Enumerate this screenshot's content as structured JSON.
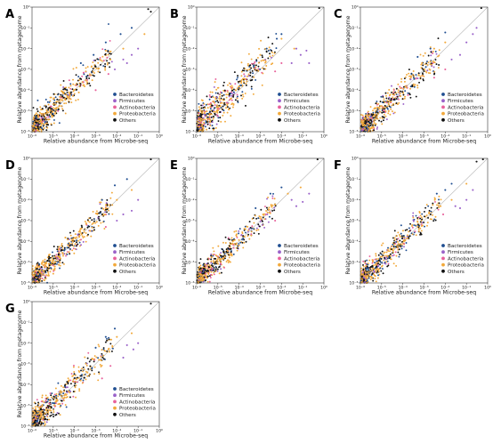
{
  "figure": {
    "colors": {
      "Bacteroidetes": "#1f4e91",
      "Firmicutes": "#9a62c9",
      "Actinobacteria": "#e8619b",
      "Proteobacteria": "#f2a93b",
      "Others": "#111111",
      "diagonal": "#b8b8b8"
    }
  },
  "chart_data": [
    {
      "type": "scatter",
      "panel": "A",
      "xlabel": "Relative abundance from Microbe-seq",
      "ylabel": "Relative abundance from metagenome",
      "xscale": "log",
      "yscale": "log",
      "xlim": [
        1e-06,
        1
      ],
      "ylim": [
        1e-06,
        1
      ],
      "x_ticks": [
        "10⁻⁶",
        "10⁻⁵",
        "10⁻⁴",
        "10⁻³",
        "10⁻²",
        "10⁻¹",
        "10⁰"
      ],
      "y_ticks": [
        "10⁻⁶",
        "10⁻⁵",
        "10⁻⁴",
        "10⁻³",
        "10⁻²",
        "10⁻¹",
        "10⁰"
      ],
      "reference_line": "y = x",
      "legend": [
        "Bacteroidetes",
        "Firmicutes",
        "Actinobacteria",
        "Proteobacteria",
        "Others"
      ],
      "legend_position": "lower-right",
      "seed": 11,
      "spread": 0.32,
      "offset": 0.1,
      "series": [
        {
          "name": "Bacteroidetes",
          "values": [
            [
              0.003,
              0.02
            ],
            [
              0.0008,
              0.005
            ],
            [
              0.05,
              0.1
            ],
            [
              0.015,
              0.05
            ],
            [
              0.0002,
              0.002
            ]
          ]
        },
        {
          "name": "Firmicutes",
          "values": [
            [
              0.05,
              0.005
            ],
            [
              0.02,
              0.003
            ],
            [
              0.1,
              0.01
            ],
            [
              0.03,
              0.002
            ],
            [
              0.008,
              0.001
            ]
          ]
        },
        {
          "name": "Actinobacteria",
          "values": [
            [
              0.004,
              0.0006
            ],
            [
              0.001,
              0.0001
            ]
          ]
        },
        {
          "name": "Proteobacteria",
          "values": [
            [
              0.02,
              0.01
            ],
            [
              0.005,
              0.003
            ],
            [
              0.2,
              0.05
            ],
            [
              0.003,
              0.008
            ]
          ]
        },
        {
          "name": "Others",
          "values": [
            [
              0.3,
              0.8
            ],
            [
              0.4,
              0.6
            ]
          ]
        }
      ]
    },
    {
      "type": "scatter",
      "panel": "B",
      "xlabel": "Relative abundance from Microbe-seq",
      "ylabel": "Relative abundance from metagenome",
      "xscale": "log",
      "yscale": "log",
      "xlim": [
        1e-06,
        1
      ],
      "ylim": [
        1e-06,
        1
      ],
      "x_ticks": [
        "10⁻⁶",
        "10⁻⁵",
        "10⁻⁴",
        "10⁻³",
        "10⁻²",
        "10⁻¹",
        "10⁰"
      ],
      "y_ticks": [
        "10⁻⁶",
        "10⁻⁵",
        "10⁻⁴",
        "10⁻³",
        "10⁻²",
        "10⁻¹",
        "10⁰"
      ],
      "reference_line": "y = x",
      "legend": [
        "Bacteroidetes",
        "Firmicutes",
        "Actinobacteria",
        "Proteobacteria",
        "Others"
      ],
      "legend_position": "lower-right",
      "seed": 23,
      "spread": 0.42,
      "offset": 0.2,
      "series": [
        {
          "name": "Bacteroidetes",
          "values": [
            [
              0.002,
              0.01
            ],
            [
              0.006,
              0.03
            ],
            [
              0.01,
              0.05
            ]
          ]
        },
        {
          "name": "Firmicutes",
          "values": [
            [
              0.08,
              0.005
            ],
            [
              0.2,
              0.002
            ],
            [
              0.05,
              0.01
            ],
            [
              0.15,
              0.008
            ],
            [
              0.03,
              0.002
            ]
          ]
        },
        {
          "name": "Actinobacteria",
          "values": [
            [
              0.01,
              0.002
            ],
            [
              0.005,
              0.0008
            ]
          ]
        },
        {
          "name": "Proteobacteria",
          "values": [
            [
              0.01,
              0.03
            ],
            [
              0.04,
              0.01
            ],
            [
              0.001,
              0.005
            ]
          ]
        },
        {
          "name": "Others",
          "values": [
            [
              0.6,
              0.9
            ]
          ]
        }
      ]
    },
    {
      "type": "scatter",
      "panel": "C",
      "xlabel": "Relative abundance from Microbe-seq",
      "ylabel": "Relative abundance from metagenome",
      "xscale": "log",
      "yscale": "log",
      "xlim": [
        1e-06,
        1
      ],
      "ylim": [
        1e-06,
        1
      ],
      "x_ticks": [
        "10⁻⁶",
        "10⁻⁵",
        "10⁻⁴",
        "10⁻³",
        "10⁻²",
        "10⁻¹",
        "10⁰"
      ],
      "y_ticks": [
        "10⁻⁶",
        "10⁻⁵",
        "10⁻⁴",
        "10⁻³",
        "10⁻²",
        "10⁻¹",
        "10⁰"
      ],
      "reference_line": "y = x",
      "legend": [
        "Bacteroidetes",
        "Firmicutes",
        "Actinobacteria",
        "Proteobacteria",
        "Others"
      ],
      "legend_position": "lower-right",
      "seed": 37,
      "spread": 0.32,
      "offset": 0.0,
      "series": [
        {
          "name": "Bacteroidetes",
          "values": [
            [
              0.0005,
              0.004
            ],
            [
              0.002,
              0.01
            ],
            [
              0.01,
              0.06
            ]
          ]
        },
        {
          "name": "Firmicutes",
          "values": [
            [
              0.1,
              0.02
            ],
            [
              0.2,
              0.05
            ],
            [
              0.3,
              0.1
            ],
            [
              0.05,
              0.005
            ],
            [
              0.02,
              0.003
            ]
          ]
        },
        {
          "name": "Actinobacteria",
          "values": [
            [
              0.01,
              0.001
            ],
            [
              0.003,
              0.0004
            ]
          ]
        },
        {
          "name": "Proteobacteria",
          "values": [
            [
              0.003,
              0.01
            ],
            [
              0.01,
              0.02
            ],
            [
              0.0008,
              0.002
            ]
          ]
        },
        {
          "name": "Others",
          "values": [
            [
              0.5,
              0.9
            ]
          ]
        }
      ]
    },
    {
      "type": "scatter",
      "panel": "D",
      "xlabel": "Relative abundance from Microbe-seq",
      "ylabel": "Relative abundance from metagenome",
      "xscale": "log",
      "yscale": "log",
      "xlim": [
        1e-06,
        1
      ],
      "ylim": [
        1e-06,
        1
      ],
      "x_ticks": [
        "10⁻⁶",
        "10⁻⁵",
        "10⁻⁴",
        "10⁻³",
        "10⁻²",
        "10⁻¹",
        "10⁰"
      ],
      "y_ticks": [
        "10⁻⁶",
        "10⁻⁵",
        "10⁻⁴",
        "10⁻³",
        "10⁻²",
        "10⁻¹",
        "10⁰"
      ],
      "reference_line": "y = x",
      "legend": [
        "Bacteroidetes",
        "Firmicutes",
        "Actinobacteria",
        "Proteobacteria",
        "Others"
      ],
      "legend_position": "lower-right",
      "seed": 41,
      "spread": 0.28,
      "offset": 0.05,
      "series": [
        {
          "name": "Bacteroidetes",
          "values": [
            [
              0.002,
              0.01
            ],
            [
              0.008,
              0.05
            ],
            [
              0.03,
              0.1
            ]
          ]
        },
        {
          "name": "Firmicutes",
          "values": [
            [
              0.05,
              0.003
            ],
            [
              0.02,
              0.002
            ],
            [
              0.1,
              0.01
            ],
            [
              0.01,
              0.001
            ]
          ]
        },
        {
          "name": "Actinobacteria",
          "values": [
            [
              0.003,
              0.0005
            ]
          ]
        },
        {
          "name": "Proteobacteria",
          "values": [
            [
              0.01,
              0.01
            ],
            [
              0.003,
              0.004
            ],
            [
              0.05,
              0.03
            ]
          ]
        },
        {
          "name": "Others",
          "values": [
            [
              0.4,
              0.9
            ]
          ]
        }
      ]
    },
    {
      "type": "scatter",
      "panel": "E",
      "xlabel": "Relative abundance from Microbe-seq",
      "ylabel": "Relative abundance from metagenome",
      "xscale": "log",
      "yscale": "log",
      "xlim": [
        1e-06,
        1
      ],
      "ylim": [
        1e-06,
        1
      ],
      "x_ticks": [
        "10⁻⁶",
        "10⁻⁵",
        "10⁻⁴",
        "10⁻³",
        "10⁻²",
        "10⁻¹",
        "10⁰"
      ],
      "y_ticks": [
        "10⁻⁶",
        "10⁻⁵",
        "10⁻⁴",
        "10⁻³",
        "10⁻²",
        "10⁻¹",
        "10⁰"
      ],
      "reference_line": "y = x",
      "legend": [
        "Bacteroidetes",
        "Firmicutes",
        "Actinobacteria",
        "Proteobacteria",
        "Others"
      ],
      "legend_position": "lower-right",
      "seed": 53,
      "spread": 0.3,
      "offset": 0.08,
      "series": [
        {
          "name": "Bacteroidetes",
          "values": [
            [
              0.003,
              0.02
            ],
            [
              0.01,
              0.04
            ],
            [
              0.0006,
              0.004
            ]
          ]
        },
        {
          "name": "Firmicutes",
          "values": [
            [
              0.1,
              0.008
            ],
            [
              0.05,
              0.005
            ],
            [
              0.03,
              0.01
            ],
            [
              0.2,
              0.02
            ]
          ]
        },
        {
          "name": "Actinobacteria",
          "values": [
            [
              0.005,
              0.001
            ]
          ]
        },
        {
          "name": "Proteobacteria",
          "values": [
            [
              0.02,
              0.02
            ],
            [
              0.005,
              0.006
            ],
            [
              0.08,
              0.04
            ]
          ]
        },
        {
          "name": "Others",
          "values": [
            [
              0.5,
              0.9
            ]
          ]
        }
      ]
    },
    {
      "type": "scatter",
      "panel": "F",
      "xlabel": "Relative abundance from Microbe-seq",
      "ylabel": "Relative abundance from metagenome",
      "xscale": "log",
      "yscale": "log",
      "xlim": [
        1e-06,
        1
      ],
      "ylim": [
        1e-06,
        1
      ],
      "x_ticks": [
        "10⁻⁶",
        "10⁻⁵",
        "10⁻⁴",
        "10⁻³",
        "10⁻²",
        "10⁻¹",
        "10⁰"
      ],
      "y_ticks": [
        "10⁻⁶",
        "10⁻⁵",
        "10⁻⁴",
        "10⁻³",
        "10⁻²",
        "10⁻¹",
        "10⁰"
      ],
      "reference_line": "y = x",
      "legend": [
        "Bacteroidetes",
        "Firmicutes",
        "Actinobacteria",
        "Proteobacteria",
        "Others"
      ],
      "legend_position": "lower-right",
      "seed": 67,
      "spread": 0.3,
      "offset": 0.05,
      "series": [
        {
          "name": "Bacteroidetes",
          "values": [
            [
              0.004,
              0.02
            ],
            [
              0.01,
              0.03
            ],
            [
              0.02,
              0.06
            ]
          ]
        },
        {
          "name": "Firmicutes",
          "values": [
            [
              0.1,
              0.01
            ],
            [
              0.05,
              0.004
            ],
            [
              0.2,
              0.03
            ],
            [
              0.03,
              0.005
            ]
          ]
        },
        {
          "name": "Actinobacteria",
          "values": [
            [
              0.008,
              0.002
            ]
          ]
        },
        {
          "name": "Proteobacteria",
          "values": [
            [
              0.02,
              0.01
            ],
            [
              0.006,
              0.005
            ],
            [
              0.1,
              0.06
            ]
          ]
        },
        {
          "name": "Others",
          "values": [
            [
              0.3,
              0.7
            ],
            [
              0.6,
              0.9
            ]
          ]
        }
      ]
    },
    {
      "type": "scatter",
      "panel": "G",
      "xlabel": "Relative abundance from Microbe-seq",
      "ylabel": "Relative abundance from metagenome",
      "xscale": "log",
      "yscale": "log",
      "xlim": [
        1e-06,
        1
      ],
      "ylim": [
        1e-06,
        1
      ],
      "x_ticks": [
        "10⁻⁶",
        "10⁻⁵",
        "10⁻⁴",
        "10⁻³",
        "10⁻²",
        "10⁻¹",
        "10⁰"
      ],
      "y_ticks": [
        "10⁻⁶",
        "10⁻⁵",
        "10⁻⁴",
        "10⁻³",
        "10⁻²",
        "10⁻¹",
        "10⁰"
      ],
      "reference_line": "y = x",
      "legend": [
        "Bacteroidetes",
        "Firmicutes",
        "Actinobacteria",
        "Proteobacteria",
        "Others"
      ],
      "legend_position": "lower-right",
      "seed": 79,
      "spread": 0.34,
      "offset": 0.12,
      "series": [
        {
          "name": "Bacteroidetes",
          "values": [
            [
              0.003,
              0.02
            ],
            [
              0.008,
              0.05
            ],
            [
              0.001,
              0.006
            ]
          ]
        },
        {
          "name": "Firmicutes",
          "values": [
            [
              0.06,
              0.005
            ],
            [
              0.02,
              0.002
            ],
            [
              0.1,
              0.01
            ],
            [
              0.03,
              0.008
            ]
          ]
        },
        {
          "name": "Actinobacteria",
          "values": [
            [
              0.005,
              0.0008
            ],
            [
              0.002,
              0.0002
            ]
          ]
        },
        {
          "name": "Proteobacteria",
          "values": [
            [
              0.01,
              0.02
            ],
            [
              0.004,
              0.005
            ],
            [
              0.05,
              0.03
            ]
          ]
        },
        {
          "name": "Others",
          "values": [
            [
              0.4,
              0.8
            ]
          ]
        }
      ]
    }
  ]
}
